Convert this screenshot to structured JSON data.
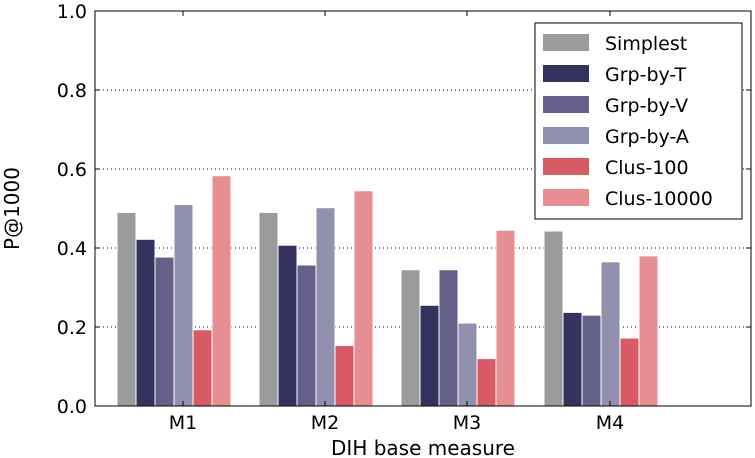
{
  "chart_data": {
    "type": "bar",
    "title": "",
    "xlabel": "DIH base measure",
    "ylabel": "P@1000",
    "ylim": [
      0,
      1.0
    ],
    "yticks": [
      0.0,
      0.2,
      0.4,
      0.6,
      0.8,
      1.0
    ],
    "ytick_labels": [
      "0.0",
      "0.2",
      "0.4",
      "0.6",
      "0.8",
      "1.0"
    ],
    "grid": "horizontal dotted",
    "legend_position": "top-right",
    "categories": [
      "M1",
      "M2",
      "M3",
      "M4"
    ],
    "series": [
      {
        "name": "Simplest",
        "color": "#9b9b9b",
        "values": [
          0.49,
          0.49,
          0.345,
          0.443
        ]
      },
      {
        "name": "Grp-by-T",
        "color": "#34325f",
        "values": [
          0.422,
          0.407,
          0.255,
          0.237
        ]
      },
      {
        "name": "Grp-by-V",
        "color": "#64608a",
        "values": [
          0.377,
          0.357,
          0.345,
          0.23
        ]
      },
      {
        "name": "Grp-by-A",
        "color": "#9190ae",
        "values": [
          0.51,
          0.502,
          0.21,
          0.365
        ]
      },
      {
        "name": "Clus-100",
        "color": "#d85a63",
        "values": [
          0.193,
          0.153,
          0.12,
          0.172
        ]
      },
      {
        "name": "Clus-10000",
        "color": "#e68e91",
        "values": [
          0.583,
          0.545,
          0.445,
          0.38
        ]
      }
    ]
  }
}
